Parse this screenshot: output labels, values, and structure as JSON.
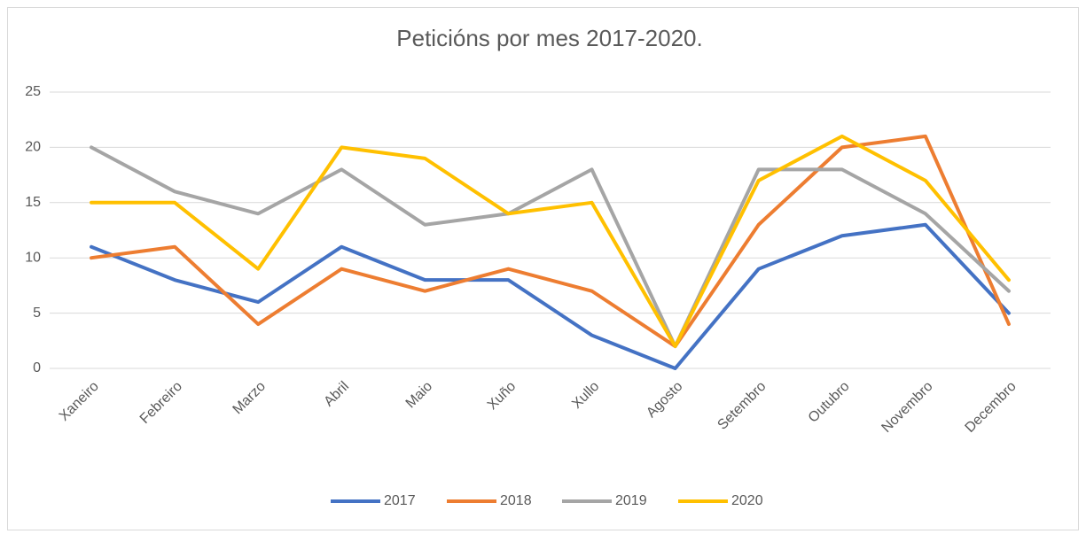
{
  "chart_data": {
    "type": "line",
    "title": "Peticións por mes 2017-2020.",
    "categories": [
      "Xaneiro",
      "Febreiro",
      "Marzo",
      "Abril",
      "Maio",
      "Xuño",
      "Xullo",
      "Agosto",
      "Setembro",
      "Outubro",
      "Novembro",
      "Decembro"
    ],
    "series": [
      {
        "name": "2017",
        "color": "#4472c4",
        "values": [
          11,
          8,
          6,
          11,
          8,
          8,
          3,
          0,
          9,
          12,
          13,
          5
        ]
      },
      {
        "name": "2018",
        "color": "#ed7d31",
        "values": [
          10,
          11,
          4,
          9,
          7,
          9,
          7,
          2,
          13,
          20,
          21,
          4
        ]
      },
      {
        "name": "2019",
        "color": "#a5a5a5",
        "values": [
          20,
          16,
          14,
          18,
          13,
          14,
          18,
          2,
          18,
          18,
          14,
          7
        ]
      },
      {
        "name": "2020",
        "color": "#ffc000",
        "values": [
          15,
          15,
          9,
          20,
          19,
          14,
          15,
          2,
          17,
          21,
          17,
          8
        ]
      }
    ],
    "ylim": [
      0,
      25
    ],
    "yticks": [
      0,
      5,
      10,
      15,
      20,
      25
    ],
    "grid": true,
    "legend": "bottom"
  }
}
